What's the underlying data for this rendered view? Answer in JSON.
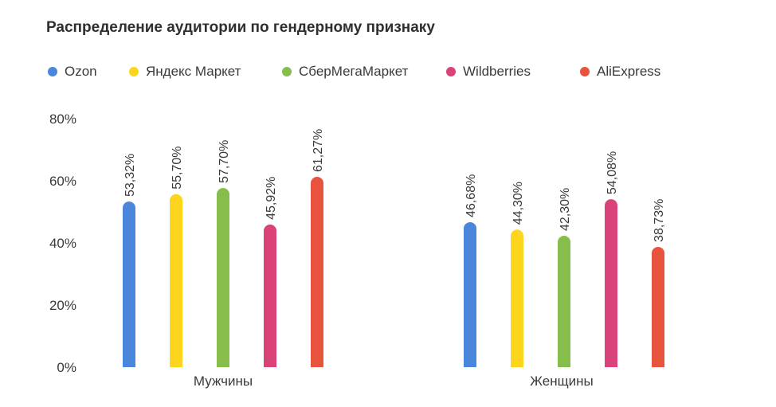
{
  "chart_data": {
    "type": "bar",
    "title": "Распределение аудитории по гендерному признаку",
    "categories": [
      "Мужчины",
      "Женщины"
    ],
    "series": [
      {
        "name": "Ozon",
        "color": "#4a86dc",
        "values": [
          53.32,
          46.68
        ],
        "labels": [
          "53,32%",
          "46,68%"
        ]
      },
      {
        "name": "Яндекс Маркет",
        "color": "#fdd51c",
        "values": [
          55.7,
          44.3
        ],
        "labels": [
          "55,70%",
          "44,30%"
        ]
      },
      {
        "name": "СберМегаМаркет",
        "color": "#86bd4b",
        "values": [
          57.7,
          42.3
        ],
        "labels": [
          "57,70%",
          "42,30%"
        ]
      },
      {
        "name": "Wildberries",
        "color": "#d94379",
        "values": [
          45.92,
          54.08
        ],
        "labels": [
          "45,92%",
          "54,08%"
        ]
      },
      {
        "name": "AliExpress",
        "color": "#e8533d",
        "values": [
          61.27,
          38.73
        ],
        "labels": [
          "61,27%",
          "38,73%"
        ]
      }
    ],
    "ylim": [
      0,
      80
    ],
    "yticks": [
      "0%",
      "20%",
      "40%",
      "60%",
      "80%"
    ],
    "ytick_values": [
      0,
      20,
      40,
      60,
      80
    ],
    "grid": false,
    "legend_position": "top"
  }
}
